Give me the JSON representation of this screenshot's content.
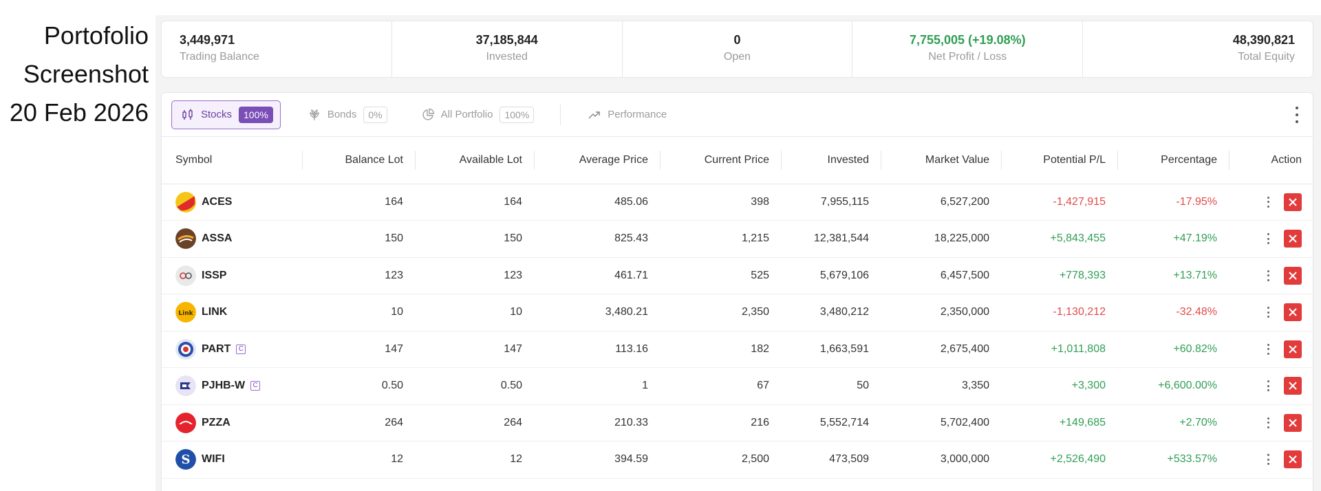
{
  "caption": {
    "line1": "Portofolio",
    "line2": "Screenshot",
    "line3": "20 Feb 2026"
  },
  "summary": [
    {
      "value": "3,449,971",
      "label": "Trading Balance",
      "status": "neutral"
    },
    {
      "value": "37,185,844",
      "label": "Invested",
      "status": "neutral"
    },
    {
      "value": "0",
      "label": "Open",
      "status": "neutral"
    },
    {
      "value": "7,755,005 (+19.08%)",
      "label": "Net Profit / Loss",
      "status": "positive"
    },
    {
      "value": "48,390,821",
      "label": "Total Equity",
      "status": "neutral"
    }
  ],
  "tabs": [
    {
      "label": "Stocks",
      "badge": "100%",
      "icon": "candlestick-icon",
      "active": true
    },
    {
      "label": "Bonds",
      "badge": "0%",
      "icon": "wheat-icon",
      "active": false
    },
    {
      "label": "All Portfolio",
      "badge": "100%",
      "icon": "pie-chart-icon",
      "active": false
    },
    {
      "label": "Performance",
      "icon": "trend-up-icon",
      "active": false
    }
  ],
  "columns": [
    "Symbol",
    "Balance Lot",
    "Available Lot",
    "Average Price",
    "Current Price",
    "Invested",
    "Market Value",
    "Potential P/L",
    "Percentage",
    "Action"
  ],
  "rows": [
    {
      "symbol": "ACES",
      "badge": "",
      "balance_lot": "164",
      "available_lot": "164",
      "avg_price": "485.06",
      "current_price": "398",
      "invested": "7,955,115",
      "market_value": "6,527,200",
      "pl": "-1,427,915",
      "pct": "-17.95%",
      "status": "negative"
    },
    {
      "symbol": "ASSA",
      "badge": "",
      "balance_lot": "150",
      "available_lot": "150",
      "avg_price": "825.43",
      "current_price": "1,215",
      "invested": "12,381,544",
      "market_value": "18,225,000",
      "pl": "+5,843,455",
      "pct": "+47.19%",
      "status": "positive"
    },
    {
      "symbol": "ISSP",
      "badge": "",
      "balance_lot": "123",
      "available_lot": "123",
      "avg_price": "461.71",
      "current_price": "525",
      "invested": "5,679,106",
      "market_value": "6,457,500",
      "pl": "+778,393",
      "pct": "+13.71%",
      "status": "positive"
    },
    {
      "symbol": "LINK",
      "badge": "",
      "balance_lot": "10",
      "available_lot": "10",
      "avg_price": "3,480.21",
      "current_price": "2,350",
      "invested": "3,480,212",
      "market_value": "2,350,000",
      "pl": "-1,130,212",
      "pct": "-32.48%",
      "status": "negative"
    },
    {
      "symbol": "PART",
      "badge": "C",
      "balance_lot": "147",
      "available_lot": "147",
      "avg_price": "113.16",
      "current_price": "182",
      "invested": "1,663,591",
      "market_value": "2,675,400",
      "pl": "+1,011,808",
      "pct": "+60.82%",
      "status": "positive"
    },
    {
      "symbol": "PJHB-W",
      "badge": "C",
      "balance_lot": "0.50",
      "available_lot": "0.50",
      "avg_price": "1",
      "current_price": "67",
      "invested": "50",
      "market_value": "3,350",
      "pl": "+3,300",
      "pct": "+6,600.00%",
      "status": "positive"
    },
    {
      "symbol": "PZZA",
      "badge": "",
      "balance_lot": "264",
      "available_lot": "264",
      "avg_price": "210.33",
      "current_price": "216",
      "invested": "5,552,714",
      "market_value": "5,702,400",
      "pl": "+149,685",
      "pct": "+2.70%",
      "status": "positive"
    },
    {
      "symbol": "WIFI",
      "badge": "",
      "balance_lot": "12",
      "available_lot": "12",
      "avg_price": "394.59",
      "current_price": "2,500",
      "invested": "473,509",
      "market_value": "3,000,000",
      "pl": "+2,526,490",
      "pct": "+533.57%",
      "status": "positive"
    }
  ],
  "colors": {
    "positive": "#2f9e54",
    "negative": "#e14a4a",
    "accent": "#7b4db6",
    "danger": "#e23b3b"
  }
}
